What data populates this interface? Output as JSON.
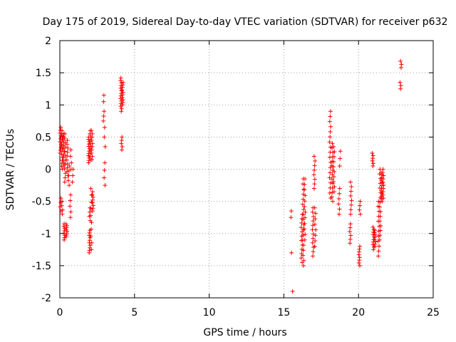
{
  "chart_data": {
    "type": "scatter",
    "title": "Day 175 of 2019, Sidereal Day-to-day VTEC variation (SDTVAR) for receiver p632",
    "xlabel": "GPS time / hours",
    "ylabel": "SDTVAR / TECUs",
    "xlim": [
      0,
      25
    ],
    "ylim": [
      -2,
      2
    ],
    "xticks": [
      0,
      5,
      10,
      15,
      20,
      25
    ],
    "xtick_labels": [
      "0",
      "5",
      "10",
      "15",
      "20",
      "25"
    ],
    "yticks": [
      -2,
      -1.5,
      -1,
      -0.5,
      0,
      0.5,
      1,
      1.5,
      2
    ],
    "ytick_labels": [
      "-2",
      "-1.5",
      "-1",
      "-0.5",
      "0",
      "0.5",
      "1",
      "1.5",
      "2"
    ],
    "grid": true,
    "marker": "+",
    "marker_color": "#ff0000",
    "clusters": [
      {
        "x": 0.05,
        "y_min": 0.25,
        "y_max": 0.65,
        "n": 10
      },
      {
        "x": 0.05,
        "y_min": -0.65,
        "y_max": -0.45,
        "n": 4
      },
      {
        "x": 0.15,
        "y_min": 0.0,
        "y_max": 0.6,
        "n": 14
      },
      {
        "x": 0.15,
        "y_min": -0.7,
        "y_max": -0.5,
        "n": 4
      },
      {
        "x": 0.25,
        "y_min": 0.05,
        "y_max": 0.55,
        "n": 12
      },
      {
        "x": 0.3,
        "y_min": -1.1,
        "y_max": -0.85,
        "n": 8
      },
      {
        "x": 0.35,
        "y_min": -0.2,
        "y_max": 0.55,
        "n": 12
      },
      {
        "x": 0.45,
        "y_min": -1.05,
        "y_max": -0.85,
        "n": 8
      },
      {
        "x": 0.5,
        "y_min": -0.1,
        "y_max": 0.45,
        "n": 10
      },
      {
        "x": 0.6,
        "y_min": -0.25,
        "y_max": 0.05,
        "n": 5
      },
      {
        "x": 0.7,
        "y_min": -0.75,
        "y_max": -0.4,
        "n": 5
      },
      {
        "x": 0.75,
        "y_min": 0.0,
        "y_max": 0.3,
        "n": 4
      },
      {
        "x": 0.85,
        "y_min": -0.2,
        "y_max": 0.0,
        "n": 3
      },
      {
        "x": 1.95,
        "y_min": 0.1,
        "y_max": 0.5,
        "n": 12
      },
      {
        "x": 2.0,
        "y_min": -1.3,
        "y_max": -0.95,
        "n": 10
      },
      {
        "x": 2.0,
        "y_min": -0.8,
        "y_max": -0.6,
        "n": 4
      },
      {
        "x": 2.05,
        "y_min": 0.15,
        "y_max": 0.6,
        "n": 10
      },
      {
        "x": 2.1,
        "y_min": -1.25,
        "y_max": -0.3,
        "n": 10
      },
      {
        "x": 2.15,
        "y_min": 0.15,
        "y_max": 0.6,
        "n": 10
      },
      {
        "x": 2.2,
        "y_min": -0.65,
        "y_max": -0.35,
        "n": 8
      },
      {
        "x": 2.95,
        "y_min": 1.05,
        "y_max": 1.15,
        "n": 2
      },
      {
        "x": 2.95,
        "y_min": 0.75,
        "y_max": 0.9,
        "n": 3
      },
      {
        "x": 3.0,
        "y_min": 0.35,
        "y_max": 0.65,
        "n": 3
      },
      {
        "x": 3.0,
        "y_min": -0.25,
        "y_max": 0.1,
        "n": 4
      },
      {
        "x": 4.1,
        "y_min": 0.9,
        "y_max": 1.42,
        "n": 14
      },
      {
        "x": 4.15,
        "y_min": 0.3,
        "y_max": 0.5,
        "n": 5
      },
      {
        "x": 4.2,
        "y_min": 1.0,
        "y_max": 1.35,
        "n": 10
      },
      {
        "x": 15.5,
        "y_min": -0.75,
        "y_max": -0.65,
        "n": 2
      },
      {
        "x": 15.55,
        "y_min": -1.3,
        "y_max": -1.3,
        "n": 1
      },
      {
        "x": 15.55,
        "y_min": -1.9,
        "y_max": -1.9,
        "n": 1
      },
      {
        "x": 16.2,
        "y_min": -1.45,
        "y_max": -0.7,
        "n": 12
      },
      {
        "x": 16.3,
        "y_min": -1.5,
        "y_max": -0.15,
        "n": 18
      },
      {
        "x": 16.4,
        "y_min": -1.1,
        "y_max": -0.15,
        "n": 12
      },
      {
        "x": 16.95,
        "y_min": -1.35,
        "y_max": -0.6,
        "n": 12
      },
      {
        "x": 17.05,
        "y_min": -0.3,
        "y_max": 0.2,
        "n": 8
      },
      {
        "x": 17.1,
        "y_min": -1.2,
        "y_max": -0.6,
        "n": 8
      },
      {
        "x": 18.1,
        "y_min": -0.45,
        "y_max": 0.9,
        "n": 18
      },
      {
        "x": 18.25,
        "y_min": -0.5,
        "y_max": 0.4,
        "n": 14
      },
      {
        "x": 18.35,
        "y_min": -0.35,
        "y_max": 0.35,
        "n": 10
      },
      {
        "x": 18.7,
        "y_min": -0.7,
        "y_max": -0.3,
        "n": 6
      },
      {
        "x": 18.75,
        "y_min": 0.05,
        "y_max": 0.28,
        "n": 3
      },
      {
        "x": 19.45,
        "y_min": -1.15,
        "y_max": -0.85,
        "n": 6
      },
      {
        "x": 19.5,
        "y_min": -0.7,
        "y_max": -0.2,
        "n": 8
      },
      {
        "x": 20.05,
        "y_min": -1.5,
        "y_max": -1.2,
        "n": 8
      },
      {
        "x": 20.1,
        "y_min": -0.7,
        "y_max": -0.5,
        "n": 4
      },
      {
        "x": 20.95,
        "y_min": 0.05,
        "y_max": 0.25,
        "n": 6
      },
      {
        "x": 21.0,
        "y_min": -1.25,
        "y_max": -0.9,
        "n": 10
      },
      {
        "x": 21.1,
        "y_min": -1.2,
        "y_max": -0.95,
        "n": 8
      },
      {
        "x": 21.35,
        "y_min": -1.35,
        "y_max": -0.5,
        "n": 12
      },
      {
        "x": 21.45,
        "y_min": -1.1,
        "y_max": 0.0,
        "n": 16
      },
      {
        "x": 21.55,
        "y_min": -0.5,
        "y_max": -0.05,
        "n": 12
      },
      {
        "x": 21.65,
        "y_min": -0.45,
        "y_max": 0.0,
        "n": 10
      },
      {
        "x": 22.8,
        "y_min": 1.25,
        "y_max": 1.35,
        "n": 3
      },
      {
        "x": 22.85,
        "y_min": 1.58,
        "y_max": 1.68,
        "n": 3
      }
    ]
  }
}
